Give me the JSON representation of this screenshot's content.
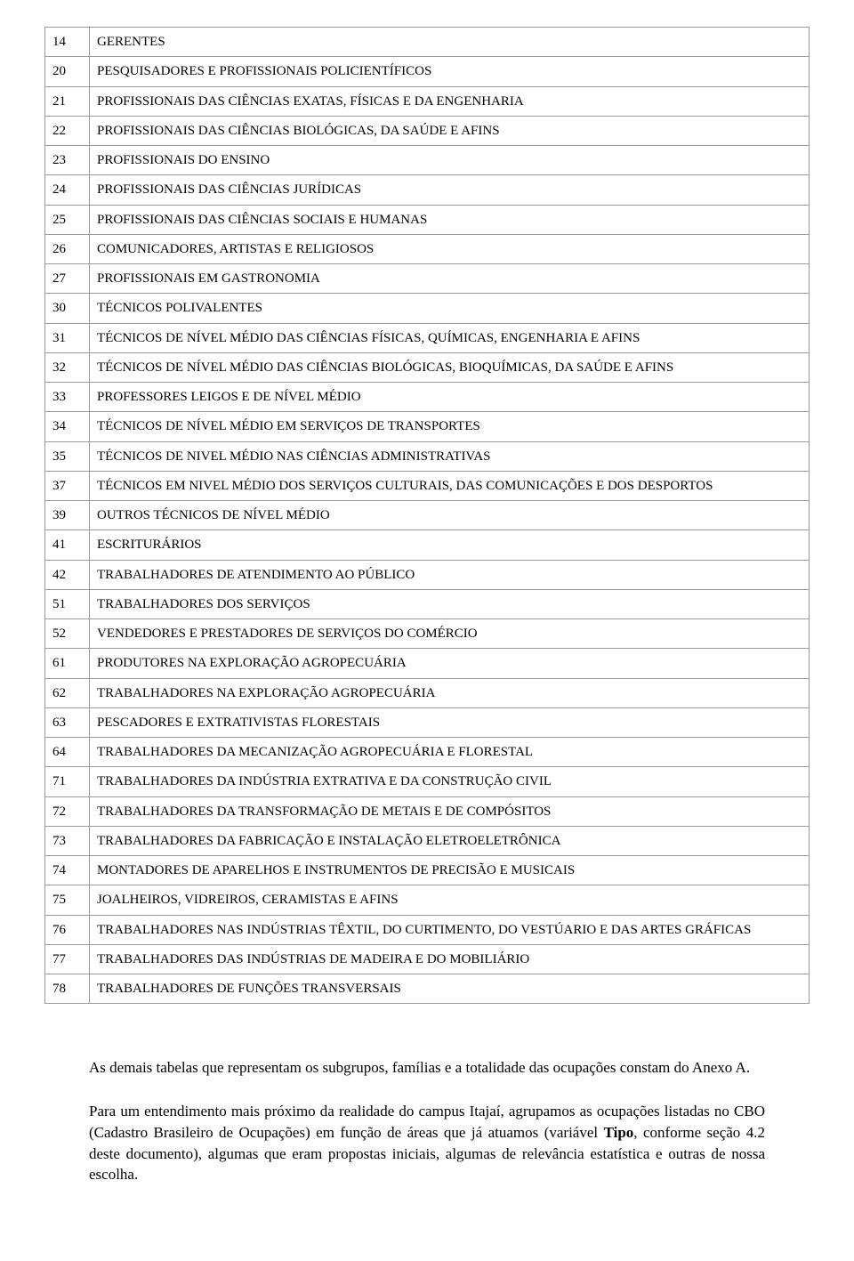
{
  "table": {
    "columns": [
      "code",
      "description"
    ],
    "col_widths": [
      "50px",
      "auto"
    ],
    "border_color": "#999999",
    "font_size": 15,
    "rows": [
      [
        "14",
        "GERENTES"
      ],
      [
        "20",
        "PESQUISADORES E PROFISSIONAIS POLICIENTÍFICOS"
      ],
      [
        "21",
        "PROFISSIONAIS DAS CIÊNCIAS EXATAS, FÍSICAS E DA ENGENHARIA"
      ],
      [
        "22",
        "PROFISSIONAIS DAS CIÊNCIAS BIOLÓGICAS, DA SAÚDE E AFINS"
      ],
      [
        "23",
        "PROFISSIONAIS DO ENSINO"
      ],
      [
        "24",
        "PROFISSIONAIS DAS CIÊNCIAS JURÍDICAS"
      ],
      [
        "25",
        "PROFISSIONAIS DAS CIÊNCIAS SOCIAIS E HUMANAS"
      ],
      [
        "26",
        "COMUNICADORES, ARTISTAS E RELIGIOSOS"
      ],
      [
        "27",
        "PROFISSIONAIS EM GASTRONOMIA"
      ],
      [
        "30",
        "TÉCNICOS POLIVALENTES"
      ],
      [
        "31",
        "TÉCNICOS DE NÍVEL MÉDIO DAS CIÊNCIAS FÍSICAS, QUÍMICAS, ENGENHARIA E AFINS"
      ],
      [
        "32",
        "TÉCNICOS DE NÍVEL MÉDIO DAS CIÊNCIAS BIOLÓGICAS, BIOQUÍMICAS, DA SAÚDE E AFINS"
      ],
      [
        "33",
        "PROFESSORES LEIGOS E DE NÍVEL MÉDIO"
      ],
      [
        "34",
        "TÉCNICOS DE NÍVEL MÉDIO EM SERVIÇOS DE TRANSPORTES"
      ],
      [
        "35",
        "TÉCNICOS DE NIVEL MÉDIO NAS CIÊNCIAS ADMINISTRATIVAS"
      ],
      [
        "37",
        "TÉCNICOS EM NIVEL MÉDIO DOS SERVIÇOS CULTURAIS, DAS COMUNICAÇÕES E DOS DESPORTOS"
      ],
      [
        "39",
        "OUTROS TÉCNICOS DE NÍVEL MÉDIO"
      ],
      [
        "41",
        "ESCRITURÁRIOS"
      ],
      [
        "42",
        "TRABALHADORES DE ATENDIMENTO AO PÚBLICO"
      ],
      [
        "51",
        "TRABALHADORES DOS SERVIÇOS"
      ],
      [
        "52",
        "VENDEDORES E PRESTADORES DE SERVIÇOS DO COMÉRCIO"
      ],
      [
        "61",
        "PRODUTORES NA EXPLORAÇÃO AGROPECUÁRIA"
      ],
      [
        "62",
        "TRABALHADORES NA EXPLORAÇÃO AGROPECUÁRIA"
      ],
      [
        "63",
        "PESCADORES E EXTRATIVISTAS FLORESTAIS"
      ],
      [
        "64",
        "TRABALHADORES DA MECANIZAÇÃO AGROPECUÁRIA E FLORESTAL"
      ],
      [
        "71",
        "TRABALHADORES DA INDÚSTRIA EXTRATIVA E DA CONSTRUÇÃO CIVIL"
      ],
      [
        "72",
        "TRABALHADORES DA TRANSFORMAÇÃO DE METAIS E DE COMPÓSITOS"
      ],
      [
        "73",
        "TRABALHADORES DA FABRICAÇÃO E INSTALAÇÃO ELETROELETRÔNICA"
      ],
      [
        "74",
        "MONTADORES DE APARELHOS E INSTRUMENTOS DE PRECISÃO E MUSICAIS"
      ],
      [
        "75",
        "JOALHEIROS, VIDREIROS, CERAMISTAS E AFINS"
      ],
      [
        "76",
        "TRABALHADORES NAS INDÚSTRIAS TÊXTIL, DO CURTIMENTO, DO VESTÚARIO E DAS ARTES GRÁFICAS"
      ],
      [
        "77",
        "TRABALHADORES DAS INDÚSTRIAS DE MADEIRA E DO MOBILIÁRIO"
      ],
      [
        "78",
        "TRABALHADORES DE FUNÇÕES TRANSVERSAIS"
      ]
    ],
    "justify_rows": [
      15,
      30
    ]
  },
  "paragraphs": {
    "p1": "As demais tabelas que representam os subgrupos, famílias e a totalidade das ocupações constam do Anexo A.",
    "p2_a": "Para um entendimento mais próximo da realidade do campus Itajaí, agrupamos as ocupações listadas no CBO (Cadastro Brasileiro de Ocupações) em função de áreas que já atuamos (variável ",
    "p2_bold": "Tipo",
    "p2_b": ", conforme seção 4.2 deste documento), algumas que eram propostas iniciais, algumas de relevância estatística e outras de nossa escolha."
  },
  "style": {
    "background": "#ffffff",
    "text_color": "#000000",
    "body_font_size": 17
  }
}
